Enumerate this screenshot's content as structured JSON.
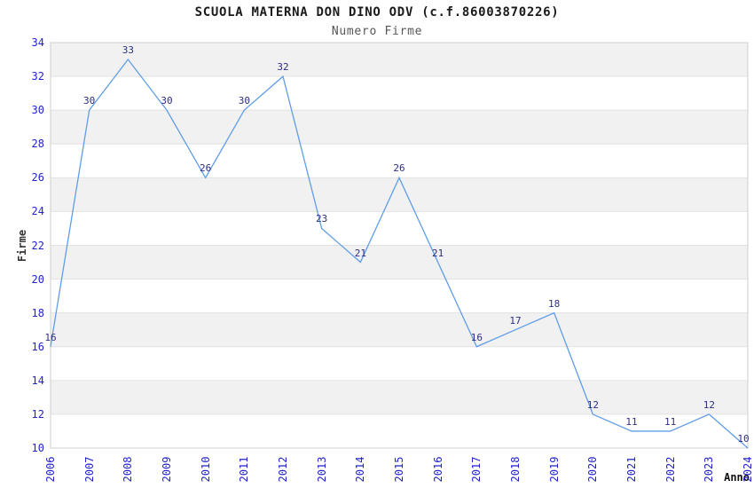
{
  "chart_data": {
    "type": "line",
    "title": "SCUOLA MATERNA DON DINO ODV (c.f.86003870226)",
    "subtitle": "Numero Firme",
    "xlabel": "Anno",
    "ylabel": "Firme",
    "x": [
      "2006",
      "2007",
      "2008",
      "2009",
      "2010",
      "2011",
      "2012",
      "2013",
      "2014",
      "2015",
      "2016",
      "2017",
      "2018",
      "2019",
      "2020",
      "2021",
      "2022",
      "2023",
      "2024"
    ],
    "series": [
      {
        "name": "Numero Firme",
        "values": [
          16,
          30,
          33,
          30,
          26,
          30,
          32,
          23,
          21,
          26,
          21,
          16,
          17,
          18,
          12,
          11,
          11,
          12,
          10
        ]
      }
    ],
    "ylim": [
      10,
      34
    ],
    "ytick_step": 2,
    "grid": "horizontal gridlines with alternating gray bands",
    "legend_position": "none",
    "data_labels_visible": true,
    "colors": {
      "line": "#5f9de8",
      "band": "#f1f1f1",
      "grid": "#e2e2e2",
      "axis": "#cfcfcf",
      "tick_label": "#2222cc",
      "data_label": "#2d2d85",
      "title": "#1a1a1a",
      "subtitle": "#565656"
    }
  }
}
